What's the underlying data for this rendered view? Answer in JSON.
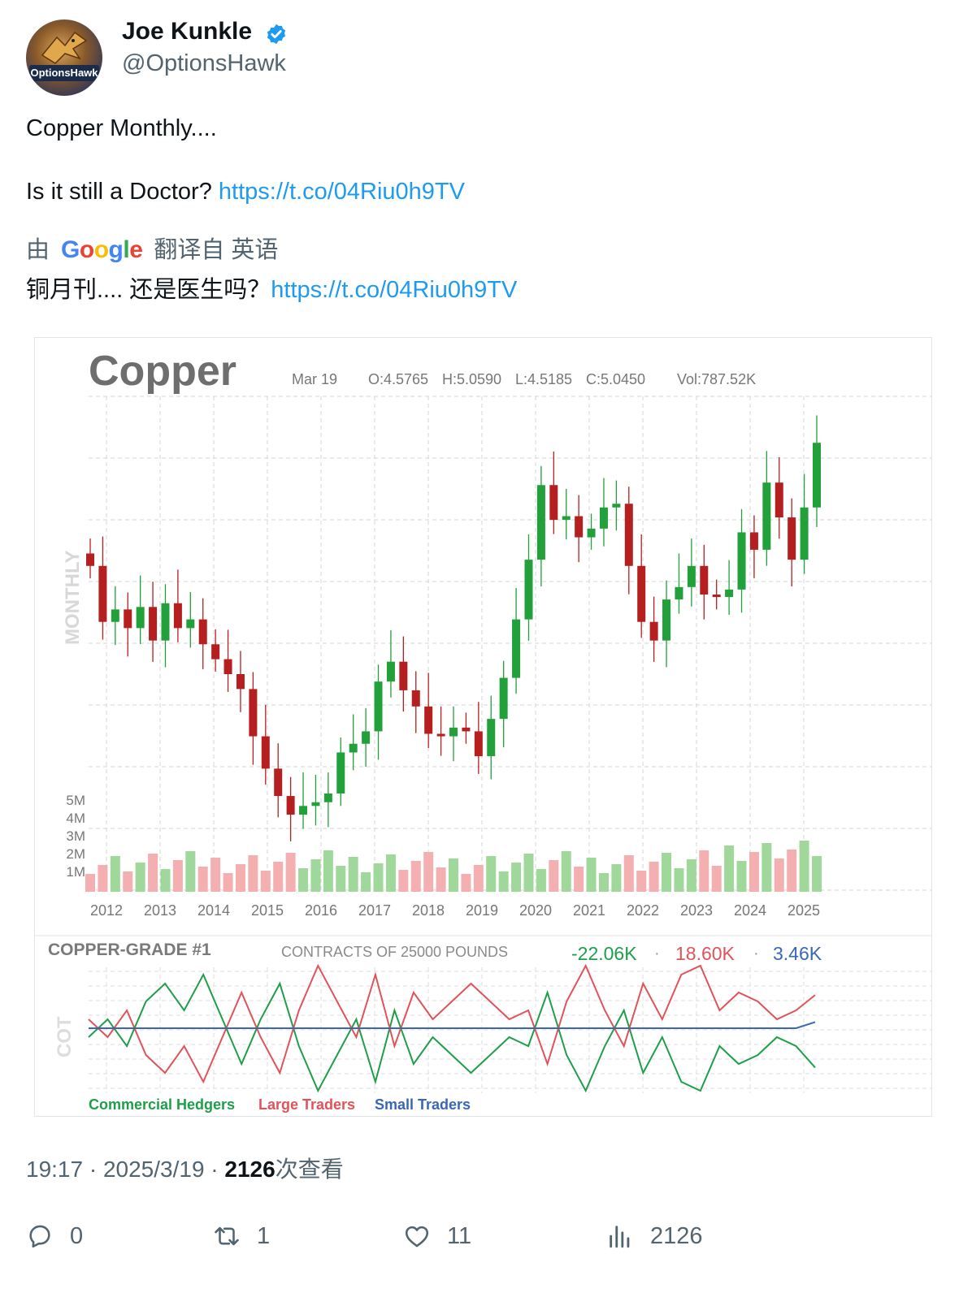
{
  "author": {
    "display_name": "Joe Kunkle",
    "handle": "@OptionsHawk",
    "avatar_text": "OptionsHawk",
    "verified_icon": "verified-badge-icon"
  },
  "tweet": {
    "line1": "Copper Monthly....",
    "line2_text": "Is it still a Doctor? ",
    "link": "https://t.co/04Riu0h9TV",
    "translation_prefix": "由",
    "translation_provider": "Google",
    "translation_suffix": "翻译自 英语",
    "translated_text": "铜月刊.... 还是医生吗？",
    "translated_link": "https://t.co/04Riu0h9TV"
  },
  "meta": {
    "time": "19:17 · 2025/3/19 · ",
    "views": "2126",
    "views_label": "次查看"
  },
  "actions": {
    "replies": "0",
    "retweets": "1",
    "likes": "11",
    "views": "2126"
  },
  "colors": {
    "link": "#1d9bf0",
    "muted": "#536471",
    "up": "#22a03a",
    "down": "#b51f1f",
    "commercial": "#1f9e4a",
    "large": "#e0535a",
    "small": "#3a67b5"
  },
  "chart_data": [
    {
      "type": "candlestick",
      "title": "Copper",
      "timeframe_label": "MONTHLY",
      "date": "Mar 19",
      "ohlc": {
        "open": "O:4.5765",
        "high": "H:5.0590",
        "low": "L:4.5185",
        "close": "C:5.0450"
      },
      "volume_label": "Vol:787.52K",
      "x_tick_labels": [
        "2012",
        "2013",
        "2014",
        "2015",
        "2016",
        "2017",
        "2018",
        "2019",
        "2020",
        "2021",
        "2022",
        "2023",
        "2024",
        "2025"
      ],
      "volume_tick_labels": [
        "5M",
        "4M",
        "3M",
        "2M",
        "1M"
      ],
      "price_closes_approx": [
        4.05,
        3.6,
        3.7,
        3.55,
        3.72,
        3.45,
        3.75,
        3.55,
        3.62,
        3.42,
        3.3,
        3.18,
        3.06,
        2.68,
        2.42,
        2.2,
        2.05,
        2.12,
        2.15,
        2.22,
        2.55,
        2.62,
        2.72,
        3.12,
        3.28,
        3.05,
        2.92,
        2.7,
        2.68,
        2.75,
        2.72,
        2.52,
        2.82,
        3.15,
        3.62,
        4.1,
        4.7,
        4.42,
        4.45,
        4.28,
        4.35,
        4.52,
        4.55,
        4.05,
        3.6,
        3.45,
        3.78,
        3.88,
        4.05,
        3.82,
        3.8,
        3.86,
        4.32,
        4.18,
        4.72,
        4.44,
        4.1,
        4.52,
        5.04
      ],
      "y_range_approx": [
        1.9,
        5.1
      ]
    },
    {
      "type": "line",
      "title": "COPPER-GRADE #1",
      "subtitle": "CONTRACTS OF 25000 POUNDS",
      "side_label": "COT",
      "readouts": [
        "-22.06K",
        "18.60K",
        "3.46K"
      ],
      "series": [
        {
          "name": "Commercial Hedgers",
          "values": [
            -5,
            5,
            -10,
            15,
            25,
            10,
            30,
            5,
            -20,
            5,
            25,
            -10,
            -35,
            -15,
            5,
            -30,
            10,
            -20,
            -5,
            -15,
            -25,
            -15,
            -5,
            -10,
            20,
            -15,
            -35,
            -10,
            10,
            -25,
            -5,
            -30,
            -35,
            -10,
            -20,
            -15,
            -5,
            -10,
            -22
          ]
        },
        {
          "name": "Large Traders",
          "values": [
            5,
            -5,
            10,
            -15,
            -25,
            -10,
            -30,
            -5,
            20,
            -5,
            -25,
            10,
            35,
            15,
            -5,
            30,
            -10,
            20,
            5,
            15,
            25,
            15,
            5,
            10,
            -20,
            15,
            35,
            10,
            -10,
            25,
            5,
            30,
            35,
            10,
            20,
            15,
            5,
            10,
            18.6
          ]
        },
        {
          "name": "Small Traders",
          "values": [
            0,
            0,
            0,
            0,
            0,
            0,
            0,
            0,
            0,
            0,
            0,
            0,
            0,
            0,
            0,
            0,
            0,
            0,
            0,
            0,
            0,
            0,
            0,
            0,
            0,
            0,
            0,
            0,
            0,
            0,
            0,
            0,
            0,
            0,
            0,
            0,
            0,
            0,
            3.46
          ]
        }
      ]
    }
  ]
}
